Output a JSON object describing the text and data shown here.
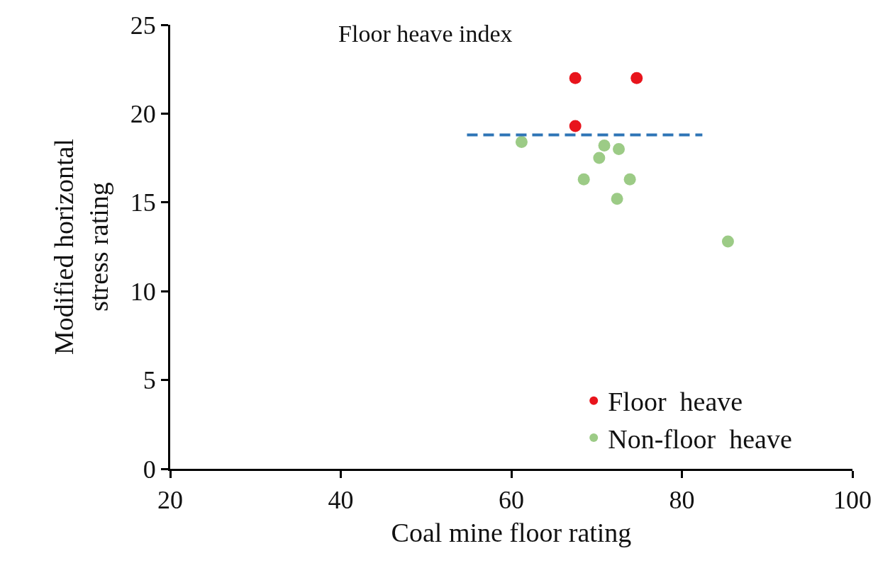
{
  "chart_data": {
    "type": "scatter",
    "title": "Floor heave index",
    "xlabel": "Coal mine floor rating",
    "ylabel": "Modified horizontal\nstress rating",
    "series": [
      {
        "name": "Floor  heave",
        "color": "#e8141c",
        "x": [
          67.5,
          74.7,
          67.5
        ],
        "values": [
          22.0,
          22.0,
          19.3
        ]
      },
      {
        "name": "Non-floor  heave",
        "color": "#9ccb86",
        "x": [
          61.2,
          70.9,
          72.6,
          70.3,
          68.5,
          73.9,
          72.4,
          85.4
        ],
        "values": [
          18.4,
          18.2,
          18.0,
          17.5,
          16.3,
          16.3,
          15.2,
          12.8
        ]
      },
      {
        "type": "line",
        "color": "#2e75b6",
        "line_style": "dashed",
        "marker": "none",
        "x": [
          54.8,
          82.4
        ],
        "values": [
          18.8,
          18.8
        ]
      }
    ],
    "xlim": [
      20,
      100
    ],
    "xticks": [
      20,
      40,
      60,
      80,
      100
    ],
    "ylim": [
      0,
      25
    ],
    "yticks": [
      0,
      5,
      10,
      15,
      20,
      25
    ],
    "grid": false,
    "legend": "bottom right",
    "marker": "circle"
  }
}
